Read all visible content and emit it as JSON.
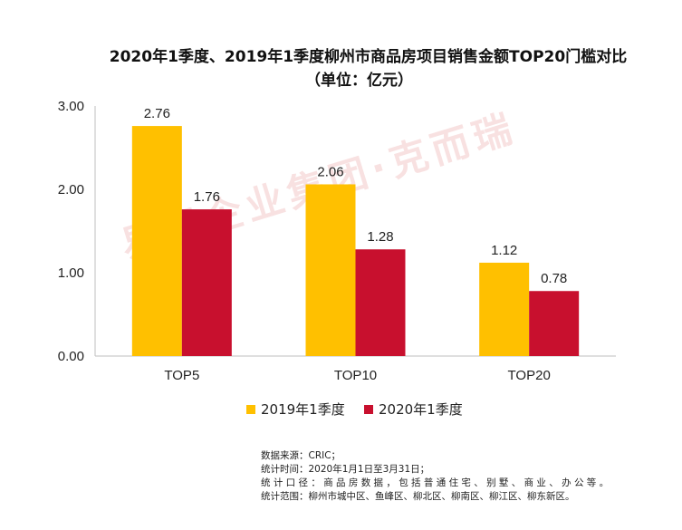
{
  "title_line1": "2020年1季度、2019年1季度柳州市商品房项目销售金额TOP20门槛对比",
  "title_line2": "（单位：亿元）",
  "watermark": "易居企业集团·克而瑞",
  "notes": [
    "数据来源：CRIC；",
    "统计时间：2020年1月1日至3月31日；",
    "统 计 口 径 ： 商 品 房 数 据 ， 包 括 普 通 住 宅 、 别 墅 、 商 业 、 办 公 等 。",
    "统计范围：柳州市城中区、鱼峰区、柳北区、柳南区、柳江区、柳东新区。"
  ],
  "colors": {
    "series2019": "#FFC000",
    "series2020": "#C8102E",
    "axis": "#bfbfbf"
  },
  "chart_data": {
    "type": "bar",
    "categories": [
      "TOP5",
      "TOP10",
      "TOP20"
    ],
    "series": [
      {
        "name": "2019年1季度",
        "values": [
          2.76,
          2.06,
          1.12
        ]
      },
      {
        "name": "2020年1季度",
        "values": [
          1.76,
          1.28,
          0.78
        ]
      }
    ],
    "data_labels": [
      [
        "2.76",
        "2.06",
        "1.12"
      ],
      [
        "1.76",
        "1.28",
        "0.78"
      ]
    ],
    "yticks": [
      "0.00",
      "1.00",
      "2.00",
      "3.00"
    ],
    "ylim": [
      0,
      3
    ],
    "grid": false,
    "legend": "bottom-center"
  }
}
